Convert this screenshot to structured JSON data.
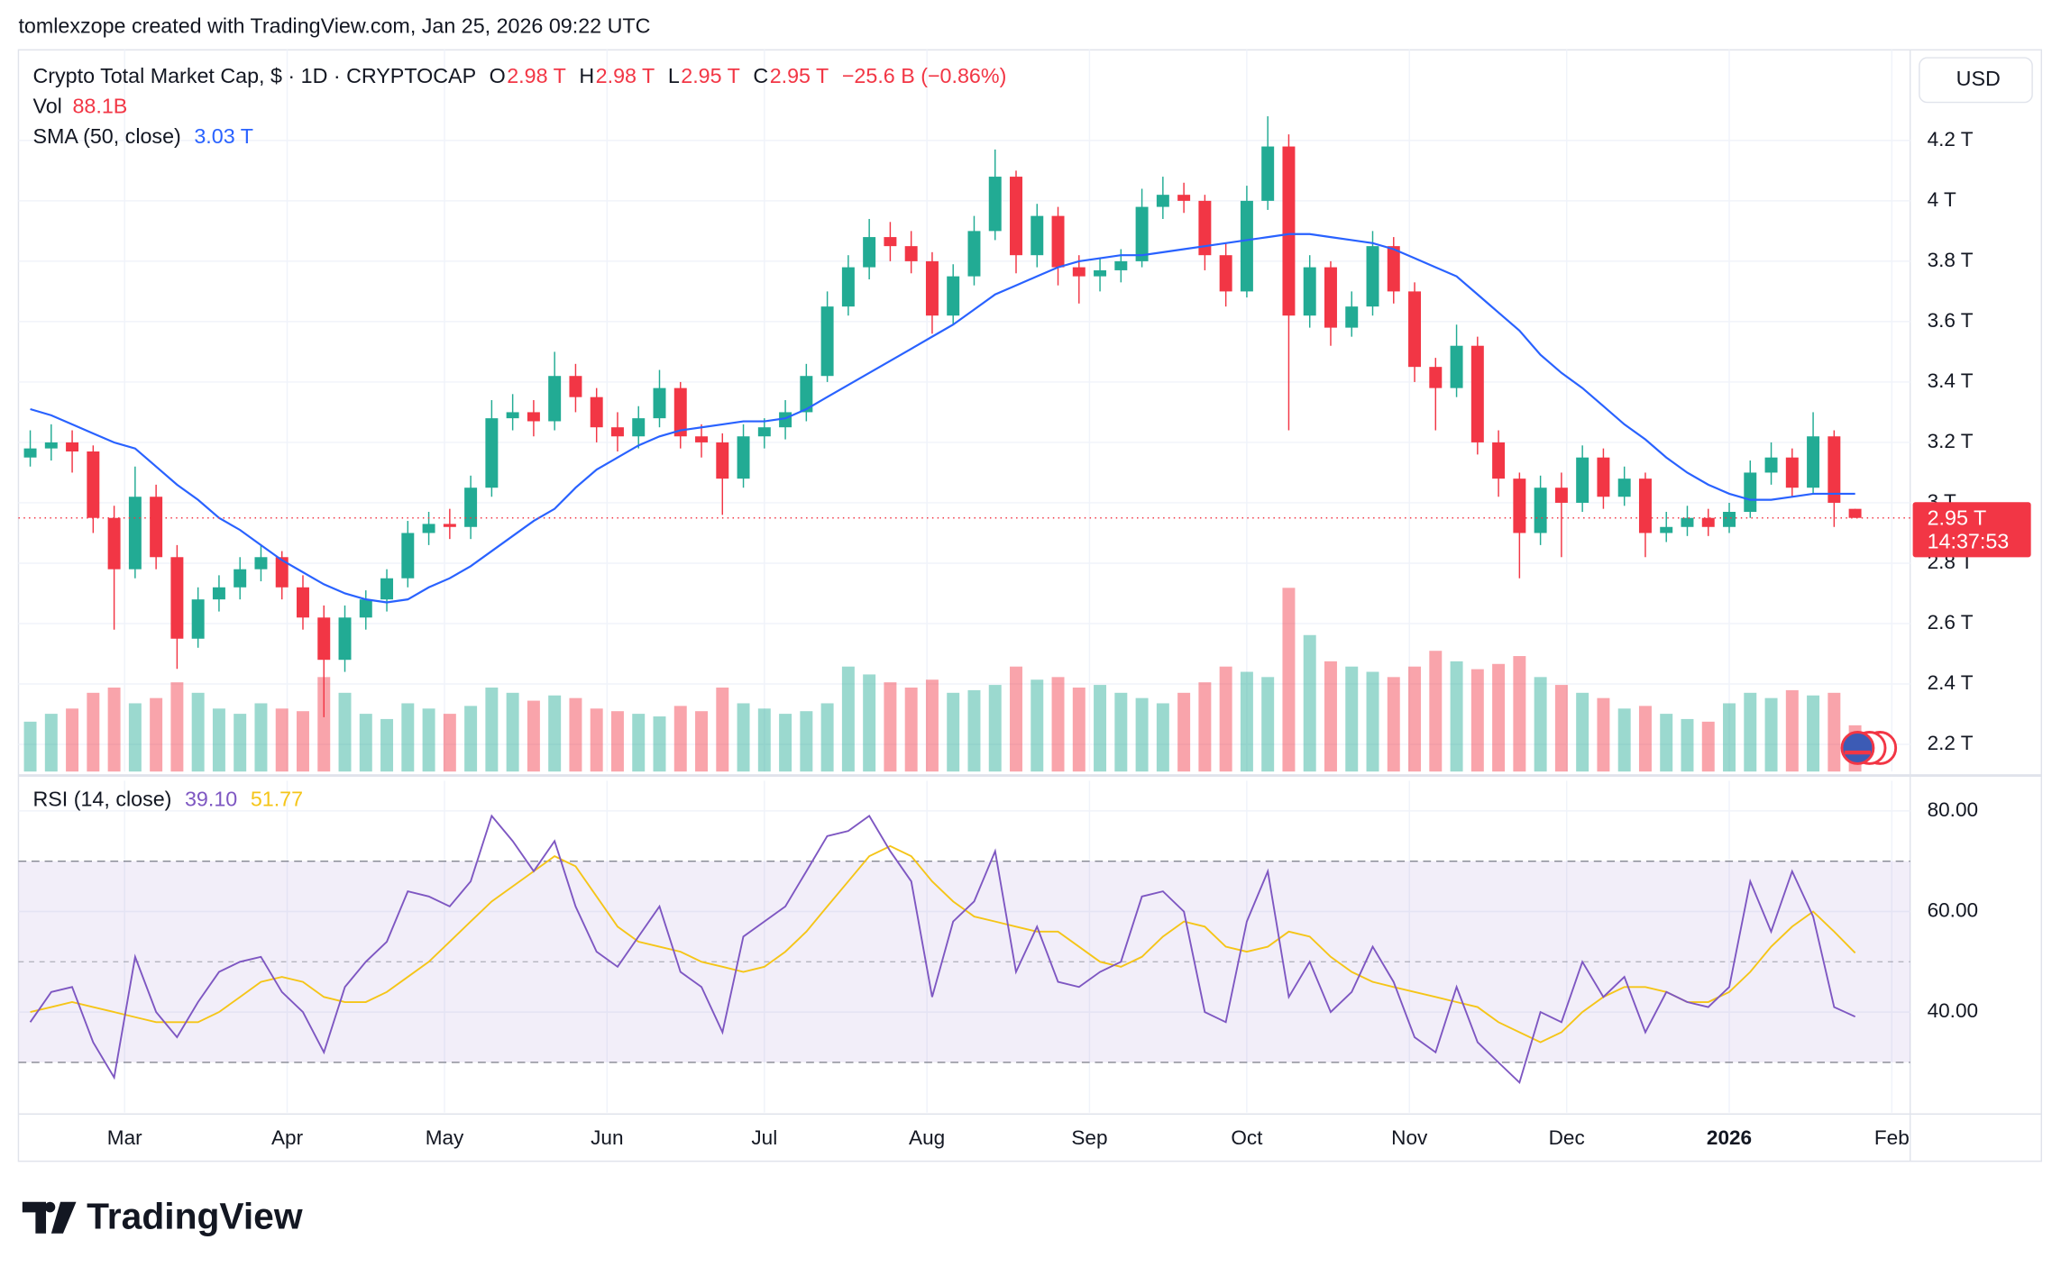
{
  "header": {
    "attribution": "tomlexzope created with TradingView.com, Jan 25, 2026 09:22 UTC"
  },
  "footer": {
    "logo": "TradingView"
  },
  "chart_data": {
    "type": "candlestick",
    "title": "Crypto Total Market Cap, $ · 1D · CRYPTOCAP",
    "legend_ohlc": [
      {
        "key": "O",
        "value": "2.98 T"
      },
      {
        "key": "H",
        "value": "2.98 T"
      },
      {
        "key": "L",
        "value": "2.95 T"
      },
      {
        "key": "C",
        "value": "2.95 T"
      }
    ],
    "change": "−25.6 B (−0.86%)",
    "currency": "USD",
    "price_label": "2.95 T",
    "countdown": "14:37:53",
    "up_color": "#22ab94",
    "down_color": "#f23645",
    "grid": true,
    "xlim": [
      0,
      360
    ],
    "xticks": [
      {
        "value": 20,
        "label": "Mar"
      },
      {
        "value": 51,
        "label": "Apr"
      },
      {
        "value": 81,
        "label": "May"
      },
      {
        "value": 112,
        "label": "Jun"
      },
      {
        "value": 142,
        "label": "Jul"
      },
      {
        "value": 173,
        "label": "Aug"
      },
      {
        "value": 204,
        "label": "Sep"
      },
      {
        "value": 234,
        "label": "Oct"
      },
      {
        "value": 265,
        "label": "Nov"
      },
      {
        "value": 295,
        "label": "Dec"
      },
      {
        "value": 326,
        "label": "2026"
      },
      {
        "value": 357,
        "label": "Feb"
      }
    ],
    "ylim": [
      2.11,
      4.5
    ],
    "yticks": [
      {
        "value": 2.2,
        "label": "2.2 T"
      },
      {
        "value": 2.4,
        "label": "2.4 T"
      },
      {
        "value": 2.6,
        "label": "2.6 T"
      },
      {
        "value": 2.8,
        "label": "2.8 T"
      },
      {
        "value": 3,
        "label": "3 T"
      },
      {
        "value": 3.2,
        "label": "3.2 T"
      },
      {
        "value": 3.4,
        "label": "3.4 T"
      },
      {
        "value": 3.6,
        "label": "3.6 T"
      },
      {
        "value": 3.8,
        "label": "3.8 T"
      },
      {
        "value": 4,
        "label": "4 T"
      },
      {
        "value": 4.2,
        "label": "4.2 T"
      }
    ],
    "x": [
      2,
      6,
      10,
      14,
      18,
      22,
      26,
      30,
      34,
      38,
      42,
      46,
      50,
      54,
      58,
      62,
      66,
      70,
      74,
      78,
      82,
      86,
      90,
      94,
      98,
      102,
      106,
      110,
      114,
      118,
      122,
      126,
      130,
      134,
      138,
      142,
      146,
      150,
      154,
      158,
      162,
      166,
      170,
      174,
      178,
      182,
      186,
      190,
      194,
      198,
      202,
      206,
      210,
      214,
      218,
      222,
      226,
      230,
      234,
      238,
      242,
      246,
      250,
      254,
      258,
      262,
      266,
      270,
      274,
      278,
      282,
      286,
      290,
      294,
      298,
      302,
      306,
      310,
      314,
      318,
      322,
      326,
      330,
      334,
      338,
      342,
      346,
      350
    ],
    "ohlc": [
      [
        3.15,
        3.24,
        3.12,
        3.18
      ],
      [
        3.18,
        3.26,
        3.14,
        3.2
      ],
      [
        3.2,
        3.24,
        3.1,
        3.17
      ],
      [
        3.17,
        3.19,
        2.9,
        2.95
      ],
      [
        2.95,
        2.99,
        2.58,
        2.78
      ],
      [
        2.78,
        3.12,
        2.75,
        3.02
      ],
      [
        3.02,
        3.06,
        2.78,
        2.82
      ],
      [
        2.82,
        2.86,
        2.45,
        2.55
      ],
      [
        2.55,
        2.72,
        2.52,
        2.68
      ],
      [
        2.68,
        2.76,
        2.64,
        2.72
      ],
      [
        2.72,
        2.82,
        2.68,
        2.78
      ],
      [
        2.78,
        2.86,
        2.74,
        2.82
      ],
      [
        2.82,
        2.84,
        2.68,
        2.72
      ],
      [
        2.72,
        2.76,
        2.58,
        2.62
      ],
      [
        2.62,
        2.66,
        2.29,
        2.48
      ],
      [
        2.48,
        2.66,
        2.44,
        2.62
      ],
      [
        2.62,
        2.71,
        2.58,
        2.68
      ],
      [
        2.68,
        2.78,
        2.64,
        2.75
      ],
      [
        2.75,
        2.94,
        2.72,
        2.9
      ],
      [
        2.9,
        2.97,
        2.86,
        2.93
      ],
      [
        2.93,
        2.98,
        2.88,
        2.92
      ],
      [
        2.92,
        3.09,
        2.88,
        3.05
      ],
      [
        3.05,
        3.34,
        3.02,
        3.28
      ],
      [
        3.28,
        3.36,
        3.24,
        3.3
      ],
      [
        3.3,
        3.34,
        3.22,
        3.27
      ],
      [
        3.27,
        3.5,
        3.24,
        3.42
      ],
      [
        3.42,
        3.46,
        3.3,
        3.35
      ],
      [
        3.35,
        3.38,
        3.2,
        3.25
      ],
      [
        3.25,
        3.3,
        3.17,
        3.22
      ],
      [
        3.22,
        3.32,
        3.18,
        3.28
      ],
      [
        3.28,
        3.44,
        3.25,
        3.38
      ],
      [
        3.38,
        3.4,
        3.18,
        3.22
      ],
      [
        3.22,
        3.26,
        3.15,
        3.2
      ],
      [
        3.2,
        3.23,
        2.96,
        3.08
      ],
      [
        3.08,
        3.26,
        3.05,
        3.22
      ],
      [
        3.22,
        3.28,
        3.18,
        3.25
      ],
      [
        3.25,
        3.34,
        3.21,
        3.3
      ],
      [
        3.3,
        3.46,
        3.27,
        3.42
      ],
      [
        3.42,
        3.7,
        3.4,
        3.65
      ],
      [
        3.65,
        3.82,
        3.62,
        3.78
      ],
      [
        3.78,
        3.94,
        3.74,
        3.88
      ],
      [
        3.88,
        3.93,
        3.8,
        3.85
      ],
      [
        3.85,
        3.9,
        3.76,
        3.8
      ],
      [
        3.8,
        3.83,
        3.56,
        3.62
      ],
      [
        3.62,
        3.79,
        3.59,
        3.75
      ],
      [
        3.75,
        3.95,
        3.72,
        3.9
      ],
      [
        3.9,
        4.17,
        3.87,
        4.08
      ],
      [
        4.08,
        4.1,
        3.76,
        3.82
      ],
      [
        3.82,
        3.99,
        3.78,
        3.95
      ],
      [
        3.95,
        3.98,
        3.72,
        3.78
      ],
      [
        3.78,
        3.82,
        3.66,
        3.75
      ],
      [
        3.75,
        3.81,
        3.7,
        3.77
      ],
      [
        3.77,
        3.84,
        3.73,
        3.8
      ],
      [
        3.8,
        4.04,
        3.78,
        3.98
      ],
      [
        3.98,
        4.08,
        3.94,
        4.02
      ],
      [
        4.02,
        4.06,
        3.96,
        4.0
      ],
      [
        4.0,
        4.02,
        3.77,
        3.82
      ],
      [
        3.82,
        3.86,
        3.65,
        3.7
      ],
      [
        3.7,
        4.05,
        3.68,
        4.0
      ],
      [
        4.0,
        4.28,
        3.97,
        4.18
      ],
      [
        4.18,
        4.22,
        3.24,
        3.62
      ],
      [
        3.62,
        3.82,
        3.58,
        3.78
      ],
      [
        3.78,
        3.8,
        3.52,
        3.58
      ],
      [
        3.58,
        3.7,
        3.55,
        3.65
      ],
      [
        3.65,
        3.9,
        3.62,
        3.85
      ],
      [
        3.85,
        3.88,
        3.66,
        3.7
      ],
      [
        3.7,
        3.73,
        3.4,
        3.45
      ],
      [
        3.45,
        3.48,
        3.24,
        3.38
      ],
      [
        3.38,
        3.59,
        3.35,
        3.52
      ],
      [
        3.52,
        3.55,
        3.16,
        3.2
      ],
      [
        3.2,
        3.24,
        3.02,
        3.08
      ],
      [
        3.08,
        3.1,
        2.75,
        2.9
      ],
      [
        2.9,
        3.09,
        2.86,
        3.05
      ],
      [
        3.05,
        3.1,
        2.82,
        3.0
      ],
      [
        3.0,
        3.19,
        2.97,
        3.15
      ],
      [
        3.15,
        3.18,
        2.98,
        3.02
      ],
      [
        3.02,
        3.12,
        2.99,
        3.08
      ],
      [
        3.08,
        3.1,
        2.82,
        2.9
      ],
      [
        2.9,
        2.97,
        2.87,
        2.92
      ],
      [
        2.92,
        2.99,
        2.89,
        2.95
      ],
      [
        2.95,
        2.98,
        2.89,
        2.92
      ],
      [
        2.92,
        3.0,
        2.9,
        2.97
      ],
      [
        2.97,
        3.14,
        2.95,
        3.1
      ],
      [
        3.1,
        3.2,
        3.06,
        3.15
      ],
      [
        3.15,
        3.18,
        3.02,
        3.05
      ],
      [
        3.05,
        3.3,
        3.03,
        3.22
      ],
      [
        3.22,
        3.24,
        2.92,
        3.0
      ],
      [
        2.98,
        2.98,
        2.95,
        2.95
      ]
    ],
    "volume_name": "Vol",
    "volume_legend": "88.1B",
    "volumes": [
      95,
      110,
      120,
      150,
      160,
      130,
      140,
      170,
      150,
      120,
      110,
      130,
      120,
      115,
      180,
      150,
      110,
      100,
      130,
      120,
      110,
      125,
      160,
      150,
      135,
      145,
      140,
      120,
      115,
      110,
      105,
      125,
      115,
      160,
      130,
      120,
      110,
      115,
      130,
      200,
      185,
      170,
      160,
      175,
      150,
      155,
      165,
      200,
      175,
      180,
      160,
      165,
      150,
      140,
      130,
      150,
      170,
      200,
      190,
      180,
      350,
      260,
      210,
      200,
      190,
      180,
      200,
      230,
      210,
      195,
      205,
      220,
      180,
      165,
      150,
      140,
      120,
      125,
      110,
      100,
      95,
      130,
      150,
      140,
      155,
      145,
      150,
      88.1
    ],
    "sma": {
      "name": "SMA (50, close)",
      "value_label": "3.03 T",
      "color": "#2962ff",
      "values": [
        3.31,
        3.29,
        3.26,
        3.23,
        3.2,
        3.18,
        3.12,
        3.06,
        3.01,
        2.95,
        2.91,
        2.86,
        2.81,
        2.77,
        2.73,
        2.7,
        2.68,
        2.67,
        2.68,
        2.72,
        2.75,
        2.79,
        2.84,
        2.89,
        2.94,
        2.98,
        3.05,
        3.11,
        3.15,
        3.19,
        3.22,
        3.24,
        3.25,
        3.26,
        3.27,
        3.27,
        3.28,
        3.31,
        3.35,
        3.39,
        3.43,
        3.47,
        3.51,
        3.55,
        3.59,
        3.64,
        3.69,
        3.72,
        3.75,
        3.78,
        3.8,
        3.81,
        3.82,
        3.82,
        3.83,
        3.84,
        3.85,
        3.86,
        3.87,
        3.88,
        3.89,
        3.89,
        3.88,
        3.87,
        3.86,
        3.84,
        3.81,
        3.78,
        3.75,
        3.69,
        3.63,
        3.57,
        3.49,
        3.43,
        3.38,
        3.32,
        3.26,
        3.21,
        3.15,
        3.1,
        3.06,
        3.03,
        3.01,
        3.01,
        3.02,
        3.03,
        3.03,
        3.03
      ]
    },
    "rsi": {
      "name": "RSI (14, close)",
      "value_label": "39.10",
      "color": "#7e57c2",
      "ma_value_label": "51.77",
      "ma_color": "#f5c518",
      "ylim": [
        20,
        86
      ],
      "yticks": [
        {
          "value": 40,
          "label": "40.00"
        },
        {
          "value": 60,
          "label": "60.00"
        },
        {
          "value": 80,
          "label": "80.00"
        }
      ],
      "levels": [
        30,
        50,
        70
      ],
      "values": [
        38,
        44,
        45,
        34,
        27,
        51,
        40,
        35,
        42,
        48,
        50,
        51,
        44,
        40,
        32,
        45,
        50,
        54,
        64,
        63,
        61,
        66,
        79,
        74,
        68,
        74,
        61,
        52,
        49,
        55,
        61,
        48,
        45,
        36,
        55,
        58,
        61,
        68,
        75,
        76,
        79,
        72,
        66,
        43,
        58,
        62,
        72,
        48,
        57,
        46,
        45,
        48,
        50,
        63,
        64,
        60,
        40,
        38,
        58,
        68,
        43,
        50,
        40,
        44,
        53,
        46,
        35,
        32,
        45,
        34,
        30,
        26,
        40,
        38,
        50,
        43,
        47,
        36,
        44,
        42,
        41,
        45,
        66,
        56,
        68,
        59,
        41,
        39.1
      ],
      "ma_values": [
        40,
        41,
        42,
        41,
        40,
        39,
        38,
        38,
        38,
        40,
        43,
        46,
        47,
        46,
        43,
        42,
        42,
        44,
        47,
        50,
        54,
        58,
        62,
        65,
        68,
        71,
        69,
        63,
        57,
        54,
        53,
        52,
        50,
        49,
        48,
        49,
        52,
        56,
        61,
        66,
        71,
        73,
        71,
        66,
        62,
        59,
        58,
        57,
        56,
        56,
        53,
        50,
        49,
        51,
        55,
        58,
        57,
        53,
        52,
        53,
        56,
        55,
        51,
        48,
        46,
        45,
        44,
        43,
        42,
        41,
        38,
        36,
        34,
        36,
        40,
        43,
        45,
        45,
        44,
        42,
        42,
        44,
        48,
        53,
        57,
        60,
        56,
        51.77
      ]
    }
  }
}
